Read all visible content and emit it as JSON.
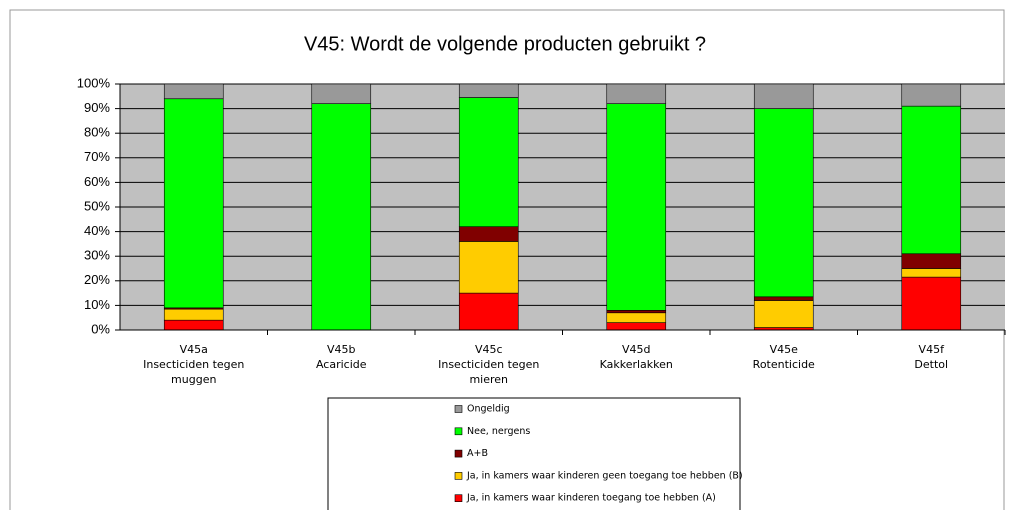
{
  "chart_data": {
    "type": "stacked-bar",
    "title": "V45: Wordt de volgende producten gebruikt ?",
    "categories": [
      [
        "V45a",
        "Insecticiden tegen",
        "muggen"
      ],
      [
        "V45b",
        "Acaricide"
      ],
      [
        "V45c",
        "Insecticiden tegen",
        "mieren"
      ],
      [
        "V45d",
        "Kakkerlakken"
      ],
      [
        "V45e",
        "Rotenticide"
      ],
      [
        "V45f",
        "Dettol"
      ]
    ],
    "series": [
      {
        "name": "Ja, in kamers waar kinderen toegang toe hebben (A)",
        "color": "#ff0000",
        "values": [
          4,
          0,
          15,
          3,
          1,
          21.5
        ]
      },
      {
        "name": "Ja, in kamers waar kinderen geen toegang toe hebben (B)",
        "color": "#ffcc00",
        "values": [
          4.5,
          0,
          21,
          4,
          11,
          3.5
        ]
      },
      {
        "name": "A+B",
        "color": "#800000",
        "values": [
          0.5,
          0,
          6,
          1,
          1.5,
          6
        ]
      },
      {
        "name": "Nee, nergens",
        "color": "#00ff00",
        "values": [
          85,
          92,
          52.5,
          84,
          76.5,
          60
        ]
      },
      {
        "name": "Ongeldig",
        "color": "#999999",
        "values": [
          6,
          8,
          5.5,
          8,
          10,
          9
        ]
      }
    ],
    "ylim": [
      0,
      100
    ],
    "yticks": [
      {
        "value": 0,
        "label": "0%"
      },
      {
        "value": 10,
        "label": "10%"
      },
      {
        "value": 20,
        "label": "20%"
      },
      {
        "value": 30,
        "label": "30%"
      },
      {
        "value": 40,
        "label": "40%"
      },
      {
        "value": 50,
        "label": "50%"
      },
      {
        "value": 60,
        "label": "60%"
      },
      {
        "value": 70,
        "label": "70%"
      },
      {
        "value": 80,
        "label": "80%"
      },
      {
        "value": 90,
        "label": "90%"
      },
      {
        "value": 100,
        "label": "100%"
      }
    ],
    "grid": true
  }
}
